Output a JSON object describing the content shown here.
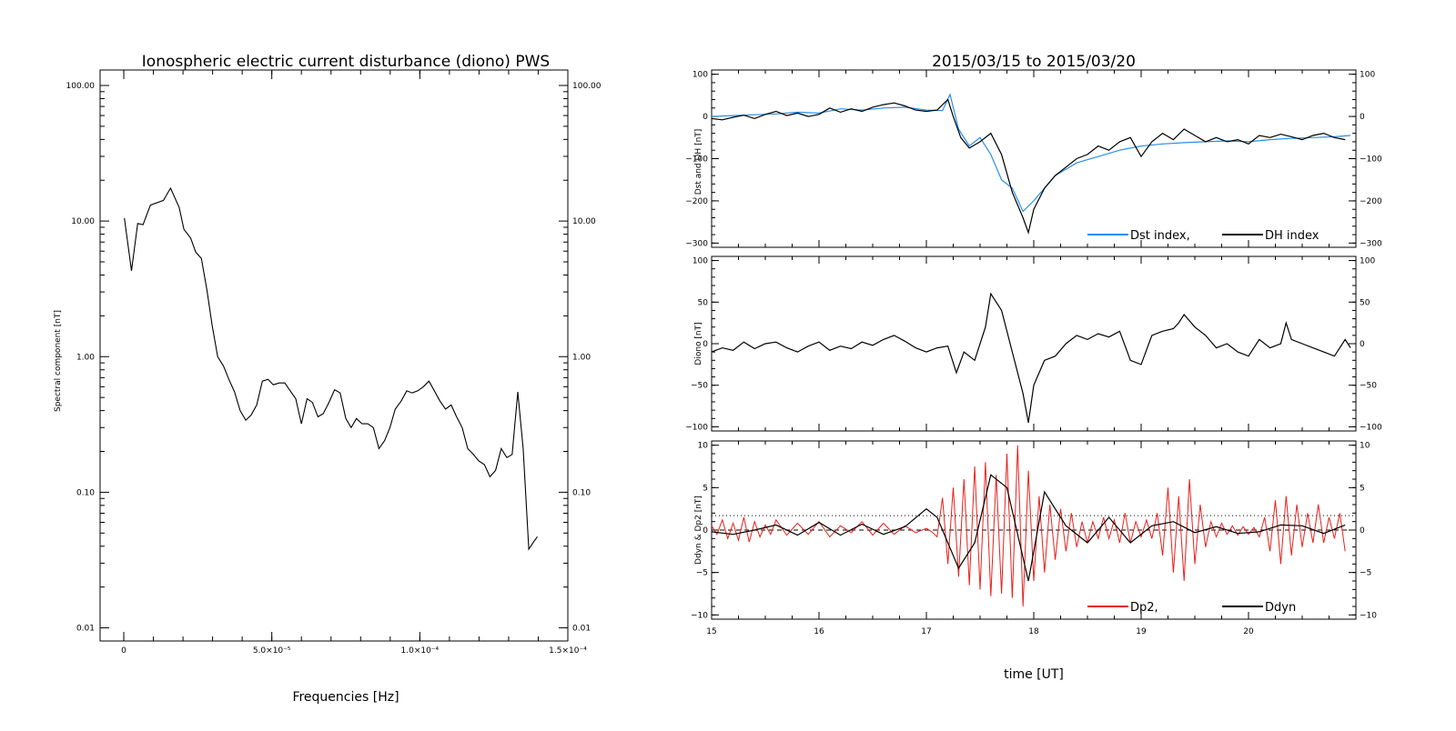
{
  "chart_data": [
    {
      "type": "line",
      "title": "Ionospheric electric current disturbance (diono) PWS",
      "xlabel": "Frequencies [Hz]",
      "ylabel": "Spectral component [nT]",
      "x_scale": "linear",
      "y_scale": "log",
      "xlim": [
        -8e-06,
        0.00015
      ],
      "ylim": [
        0.008,
        130
      ],
      "x_ticks": [
        {
          "value": 0,
          "label": "0"
        },
        {
          "value": 5e-05,
          "label": "5.0×10⁻⁵"
        },
        {
          "value": 0.0001,
          "label": "1.0×10⁻⁴"
        },
        {
          "value": 0.00015,
          "label": "1.5×10⁻⁴"
        }
      ],
      "y_ticks": [
        {
          "value": 0.01,
          "label": "0.01"
        },
        {
          "value": 0.1,
          "label": "0.10"
        },
        {
          "value": 1,
          "label": "1.00"
        },
        {
          "value": 10,
          "label": "10.00"
        },
        {
          "value": 100,
          "label": "100.00"
        }
      ],
      "series": [
        {
          "color": "#000000",
          "x": [
            2e-07,
            2.6e-06,
            4.7e-06,
            6.5e-06,
            9e-06,
            1.34e-05,
            1.58e-05,
            1.87e-05,
            2.03e-05,
            2.26e-05,
            2.43e-05,
            2.62e-05,
            2.81e-05,
            2.98e-05,
            3.17e-05,
            3.37e-05,
            3.55e-05,
            3.74e-05,
            3.93e-05,
            4.12e-05,
            4.3e-05,
            4.49e-05,
            4.68e-05,
            4.87e-05,
            5.05e-05,
            5.25e-05,
            5.44e-05,
            5.62e-05,
            5.81e-05,
            6e-05,
            6.19e-05,
            6.37e-05,
            6.56e-05,
            6.74e-05,
            6.93e-05,
            7.12e-05,
            7.31e-05,
            7.5e-05,
            7.68e-05,
            7.86e-05,
            8.05e-05,
            8.24e-05,
            8.43e-05,
            8.62e-05,
            8.81e-05,
            8.99e-05,
            9.17e-05,
            9.37e-05,
            9.56e-05,
            9.74e-05,
            9.93e-05,
            0.0001012,
            0.0001031,
            0.0001049,
            0.0001068,
            0.0001087,
            0.0001106,
            0.0001124,
            0.0001143,
            0.0001162,
            0.0001181,
            0.0001199,
            0.0001218,
            0.0001237,
            0.0001256,
            0.0001275,
            0.0001294,
            0.0001312,
            0.0001331,
            0.0001349,
            0.0001368,
            0.0001384,
            0.0001397
          ],
          "y": [
            10.5,
            4.3,
            9.6,
            9.4,
            13.1,
            14.2,
            17.5,
            12.6,
            8.7,
            7.5,
            5.9,
            5.3,
            3.1,
            1.72,
            1.0,
            0.85,
            0.68,
            0.55,
            0.4,
            0.34,
            0.37,
            0.44,
            0.66,
            0.68,
            0.62,
            0.64,
            0.64,
            0.56,
            0.49,
            0.32,
            0.49,
            0.46,
            0.36,
            0.38,
            0.46,
            0.57,
            0.54,
            0.35,
            0.3,
            0.35,
            0.32,
            0.32,
            0.3,
            0.21,
            0.24,
            0.3,
            0.41,
            0.47,
            0.56,
            0.54,
            0.56,
            0.6,
            0.66,
            0.56,
            0.47,
            0.41,
            0.44,
            0.36,
            0.3,
            0.21,
            0.19,
            0.17,
            0.16,
            0.13,
            0.145,
            0.21,
            0.18,
            0.19,
            0.55,
            0.21,
            0.038,
            0.043,
            0.047
          ]
        }
      ]
    },
    {
      "type": "line",
      "title": "2015/03/15 to 2015/03/20",
      "xlabel": "time [UT]",
      "x_unit": "day of month (March 2015, UT)",
      "xlim": [
        15,
        21
      ],
      "x_ticks": [
        15,
        16,
        17,
        18,
        19,
        20
      ],
      "panels": [
        {
          "ylabel": "Dst and DH [nT]",
          "ylim": [
            -310,
            110
          ],
          "y_ticks": [
            -300,
            -200,
            -100,
            0,
            100
          ],
          "legend": "bottom-right",
          "series": [
            {
              "name": "Dst index,",
              "color": "#2a8fe8",
              "x": [
                15.0,
                15.2,
                15.4,
                15.6,
                15.8,
                16.0,
                16.2,
                16.4,
                16.6,
                16.8,
                17.0,
                17.15,
                17.22,
                17.3,
                17.4,
                17.5,
                17.6,
                17.7,
                17.8,
                17.9,
                18.0,
                18.2,
                18.4,
                18.6,
                18.8,
                19.0,
                19.2,
                19.4,
                19.6,
                19.8,
                20.0,
                20.2,
                20.4,
                20.6,
                20.8,
                20.95
              ],
              "y": [
                0,
                2,
                4,
                6,
                10,
                8,
                18,
                15,
                20,
                22,
                15,
                14,
                52,
                -30,
                -70,
                -50,
                -90,
                -150,
                -170,
                -225,
                -200,
                -140,
                -110,
                -95,
                -80,
                -70,
                -65,
                -62,
                -60,
                -58,
                -60,
                -55,
                -52,
                -50,
                -48,
                -45
              ]
            },
            {
              "name": "DH index",
              "color": "#000000",
              "x": [
                15.0,
                15.1,
                15.2,
                15.3,
                15.4,
                15.5,
                15.6,
                15.7,
                15.8,
                15.9,
                16.0,
                16.1,
                16.2,
                16.3,
                16.4,
                16.5,
                16.6,
                16.7,
                16.8,
                16.9,
                17.0,
                17.1,
                17.2,
                17.25,
                17.32,
                17.4,
                17.5,
                17.6,
                17.7,
                17.8,
                17.9,
                17.95,
                18.0,
                18.1,
                18.2,
                18.3,
                18.4,
                18.5,
                18.6,
                18.7,
                18.8,
                18.9,
                19.0,
                19.1,
                19.2,
                19.3,
                19.4,
                19.5,
                19.6,
                19.7,
                19.8,
                19.9,
                20.0,
                20.1,
                20.2,
                20.3,
                20.4,
                20.5,
                20.6,
                20.7,
                20.8,
                20.9
              ],
              "y": [
                -5,
                -8,
                -2,
                3,
                -5,
                5,
                12,
                2,
                8,
                0,
                5,
                20,
                10,
                18,
                12,
                22,
                28,
                32,
                25,
                15,
                12,
                15,
                40,
                0,
                -50,
                -75,
                -60,
                -40,
                -90,
                -180,
                -240,
                -275,
                -220,
                -170,
                -140,
                -120,
                -100,
                -90,
                -70,
                -80,
                -60,
                -50,
                -95,
                -60,
                -40,
                -55,
                -30,
                -45,
                -60,
                -50,
                -60,
                -55,
                -65,
                -45,
                -50,
                -42,
                -48,
                -55,
                -45,
                -40,
                -50,
                -55
              ]
            }
          ]
        },
        {
          "ylabel": "Diono [nT]",
          "ylim": [
            -105,
            105
          ],
          "y_ticks": [
            -100,
            -50,
            0,
            50,
            100
          ],
          "series": [
            {
              "name": "",
              "color": "#000000",
              "x": [
                15.0,
                15.1,
                15.2,
                15.3,
                15.4,
                15.5,
                15.6,
                15.7,
                15.8,
                15.9,
                16.0,
                16.1,
                16.2,
                16.3,
                16.4,
                16.5,
                16.6,
                16.7,
                16.8,
                16.9,
                17.0,
                17.1,
                17.2,
                17.28,
                17.35,
                17.45,
                17.55,
                17.6,
                17.7,
                17.8,
                17.9,
                17.95,
                18.0,
                18.1,
                18.2,
                18.3,
                18.4,
                18.5,
                18.6,
                18.7,
                18.8,
                18.9,
                19.0,
                19.1,
                19.2,
                19.3,
                19.35,
                19.4,
                19.5,
                19.6,
                19.7,
                19.8,
                19.9,
                20.0,
                20.1,
                20.2,
                20.3,
                20.35,
                20.4,
                20.5,
                20.6,
                20.7,
                20.8,
                20.9,
                20.95
              ],
              "y": [
                -10,
                -5,
                -8,
                2,
                -6,
                0,
                2,
                -5,
                -10,
                -3,
                2,
                -8,
                -3,
                -6,
                2,
                -2,
                5,
                10,
                3,
                -5,
                -10,
                -5,
                -3,
                -35,
                -10,
                -20,
                20,
                60,
                40,
                -10,
                -60,
                -95,
                -50,
                -20,
                -15,
                0,
                10,
                5,
                12,
                8,
                15,
                -20,
                -25,
                10,
                15,
                18,
                25,
                35,
                20,
                10,
                -5,
                0,
                -10,
                -15,
                5,
                -5,
                0,
                25,
                5,
                0,
                -5,
                -10,
                -15,
                5,
                -5
              ]
            }
          ]
        },
        {
          "ylabel": "Ddyn & Dp2 [nT]",
          "ylim": [
            -10.5,
            10.5
          ],
          "y_ticks": [
            -10,
            -5,
            0,
            5,
            10
          ],
          "reference_lines": [
            {
              "value": 0,
              "style": "dashed"
            },
            {
              "value": 1.7,
              "style": "dotted"
            }
          ],
          "legend": "bottom-right",
          "series": [
            {
              "name": "Dp2,",
              "color": "#e8201c",
              "x": [
                15.0,
                15.05,
                15.1,
                15.15,
                15.2,
                15.25,
                15.3,
                15.35,
                15.4,
                15.45,
                15.5,
                15.55,
                15.6,
                15.7,
                15.8,
                15.9,
                16.0,
                16.1,
                16.2,
                16.3,
                16.4,
                16.5,
                16.6,
                16.7,
                16.8,
                16.9,
                17.0,
                17.05,
                17.1,
                17.15,
                17.2,
                17.25,
                17.3,
                17.35,
                17.4,
                17.45,
                17.5,
                17.55,
                17.6,
                17.65,
                17.7,
                17.75,
                17.8,
                17.85,
                17.9,
                17.95,
                18.0,
                18.05,
                18.1,
                18.15,
                18.2,
                18.25,
                18.3,
                18.35,
                18.4,
                18.45,
                18.5,
                18.55,
                18.6,
                18.65,
                18.7,
                18.75,
                18.8,
                18.85,
                18.9,
                18.95,
                19.0,
                19.05,
                19.1,
                19.15,
                19.2,
                19.25,
                19.3,
                19.35,
                19.4,
                19.45,
                19.5,
                19.55,
                19.6,
                19.65,
                19.7,
                19.75,
                19.8,
                19.85,
                19.9,
                19.95,
                20.0,
                20.05,
                20.1,
                20.15,
                20.2,
                20.25,
                20.3,
                20.35,
                20.4,
                20.45,
                20.5,
                20.55,
                20.6,
                20.65,
                20.7,
                20.75,
                20.8,
                20.85,
                20.9
              ],
              "y": [
                0.5,
                -0.5,
                1.2,
                -1.0,
                0.8,
                -1.2,
                1.5,
                -1.4,
                1.0,
                -0.8,
                0.6,
                -0.5,
                1.2,
                -0.6,
                0.8,
                -0.5,
                1.0,
                -0.8,
                0.5,
                -0.3,
                1.0,
                -0.6,
                0.8,
                -0.5,
                0.5,
                -0.3,
                0.2,
                -0.2,
                -0.8,
                3.8,
                -4.0,
                5.0,
                -5.5,
                6.0,
                -6.5,
                7.5,
                -7.0,
                8.0,
                -7.8,
                6.5,
                -7.5,
                9.0,
                -8.0,
                10.0,
                -9.0,
                7.0,
                -6.0,
                4.0,
                -5.0,
                3.0,
                -3.5,
                2.5,
                -2.5,
                2.0,
                -2.0,
                1.0,
                -1.5,
                1.0,
                -1.0,
                1.5,
                -1.0,
                1.2,
                -1.5,
                2.0,
                -1.5,
                1.0,
                -0.8,
                1.2,
                -1.0,
                2.0,
                -3.0,
                5.0,
                -5.0,
                4.0,
                -6.0,
                6.0,
                -4.0,
                3.0,
                -2.0,
                1.0,
                -0.8,
                0.8,
                -0.5,
                0.5,
                -0.6,
                0.4,
                -0.5,
                0.3,
                -0.8,
                1.5,
                -2.5,
                3.5,
                -4.0,
                4.0,
                -3.0,
                3.0,
                -2.0,
                2.0,
                -1.5,
                3.0,
                -1.5,
                1.5,
                -1.0,
                2.0,
                -2.5
              ]
            },
            {
              "name": "Ddyn",
              "color": "#000000",
              "x": [
                15.0,
                15.2,
                15.4,
                15.6,
                15.8,
                16.0,
                16.2,
                16.4,
                16.6,
                16.8,
                17.0,
                17.1,
                17.3,
                17.45,
                17.6,
                17.75,
                17.95,
                18.1,
                18.3,
                18.5,
                18.7,
                18.9,
                19.1,
                19.3,
                19.5,
                19.7,
                19.9,
                20.1,
                20.3,
                20.5,
                20.7,
                20.9
              ],
              "y": [
                -0.2,
                -0.5,
                0.0,
                0.6,
                -0.6,
                0.9,
                -0.6,
                0.7,
                -0.5,
                0.4,
                2.5,
                1.5,
                -4.5,
                -1.5,
                6.5,
                5.0,
                -6.0,
                4.5,
                0.5,
                -1.5,
                1.5,
                -1.5,
                0.5,
                1.0,
                -0.3,
                0.4,
                -0.4,
                -0.2,
                0.6,
                0.5,
                -0.4,
                0.6
              ]
            }
          ]
        }
      ]
    }
  ]
}
